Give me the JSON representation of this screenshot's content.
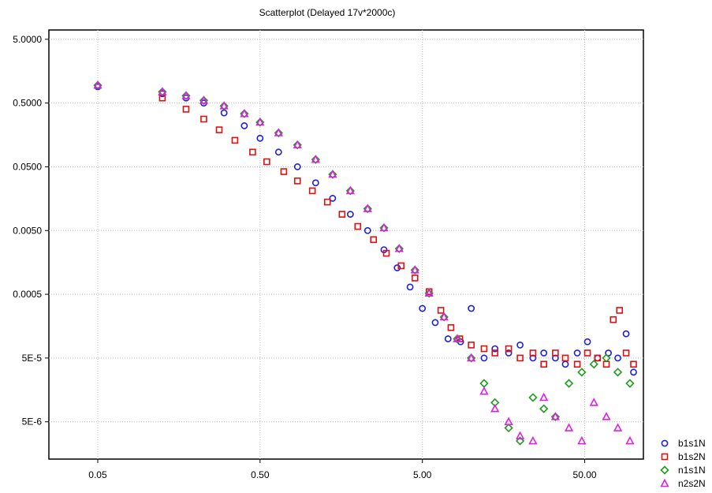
{
  "chart_data": {
    "type": "scatter",
    "title": "Scatterplot (Delayed 17v*2000c)",
    "xlabel": "",
    "ylabel": "",
    "x_scale": "log",
    "y_scale": "log",
    "xlim": [
      0.025,
      115
    ],
    "ylim": [
      1.3e-06,
      7
    ],
    "x_ticks": [
      {
        "value": 0.05,
        "label": "0.05"
      },
      {
        "value": 0.5,
        "label": "0.50"
      },
      {
        "value": 5,
        "label": "5.00"
      },
      {
        "value": 50,
        "label": "50.00"
      }
    ],
    "y_ticks": [
      {
        "value": 5,
        "label": "5.0000"
      },
      {
        "value": 0.5,
        "label": "0.5000"
      },
      {
        "value": 0.05,
        "label": "0.0500"
      },
      {
        "value": 0.005,
        "label": "0.0050"
      },
      {
        "value": 0.0005,
        "label": "0.0005"
      },
      {
        "value": 5e-05,
        "label": "5E-5"
      },
      {
        "value": 5e-06,
        "label": "5E-6"
      }
    ],
    "grid": true,
    "legend_position": "bottom-right",
    "series": [
      {
        "name": "b1s1N",
        "marker": "circle",
        "color": "#1f1fd6",
        "x": [
          0.05,
          0.125,
          0.175,
          0.225,
          0.3,
          0.4,
          0.5,
          0.65,
          0.85,
          1.1,
          1.4,
          1.8,
          2.3,
          2.9,
          3.5,
          4.2,
          5.0,
          6.0,
          7.2,
          8.6,
          10,
          12,
          14,
          17,
          20,
          24,
          28,
          33,
          38,
          45,
          52,
          60,
          70,
          80,
          90,
          100
        ],
        "y": [
          0.9,
          0.7,
          0.6,
          0.5,
          0.35,
          0.22,
          0.14,
          0.085,
          0.05,
          0.028,
          0.016,
          0.009,
          0.005,
          0.0025,
          0.0013,
          0.00065,
          0.0003,
          0.00018,
          0.0001,
          9e-05,
          0.0003,
          5e-05,
          7e-05,
          6e-05,
          8e-05,
          5e-05,
          6e-05,
          5e-05,
          4e-05,
          6e-05,
          9e-05,
          5e-05,
          6e-05,
          5e-05,
          0.00012,
          3e-05
        ]
      },
      {
        "name": "b1s2N",
        "marker": "square",
        "color": "#e01010",
        "x": [
          0.125,
          0.175,
          0.225,
          0.28,
          0.35,
          0.45,
          0.55,
          0.7,
          0.85,
          1.05,
          1.3,
          1.6,
          2.0,
          2.5,
          3.0,
          3.7,
          4.5,
          5.5,
          6.5,
          7.5,
          8.5,
          10,
          12,
          14,
          17,
          20,
          24,
          28,
          33,
          38,
          45,
          52,
          60,
          68,
          75,
          82,
          90,
          100
        ],
        "y": [
          0.6,
          0.4,
          0.28,
          0.19,
          0.13,
          0.085,
          0.06,
          0.042,
          0.03,
          0.021,
          0.014,
          0.009,
          0.0058,
          0.0036,
          0.0022,
          0.0014,
          0.0009,
          0.00055,
          0.00028,
          0.00015,
          0.0001,
          8e-05,
          7e-05,
          6e-05,
          7e-05,
          5e-05,
          6e-05,
          4e-05,
          6e-05,
          5e-05,
          4e-05,
          6e-05,
          5e-05,
          4e-05,
          0.0002,
          0.00028,
          6e-05,
          4e-05
        ]
      },
      {
        "name": "n1s1N",
        "marker": "diamond",
        "color": "#1e9a1e",
        "x": [
          0.05,
          0.125,
          0.175,
          0.225,
          0.3,
          0.4,
          0.5,
          0.65,
          0.85,
          1.1,
          1.4,
          1.8,
          2.3,
          2.9,
          3.6,
          4.5,
          5.5,
          6.8,
          8.2,
          10,
          12,
          14,
          17,
          20,
          24,
          28,
          33,
          40,
          48,
          57,
          68,
          80,
          95
        ],
        "y": [
          0.95,
          0.75,
          0.65,
          0.55,
          0.45,
          0.34,
          0.25,
          0.17,
          0.11,
          0.065,
          0.038,
          0.021,
          0.011,
          0.0055,
          0.0026,
          0.0012,
          0.00052,
          0.00022,
          0.0001,
          5e-05,
          2e-05,
          1e-05,
          4e-06,
          2.5e-06,
          1.2e-05,
          8e-06,
          6e-06,
          2e-05,
          3e-05,
          4e-05,
          5e-05,
          3e-05,
          2e-05
        ]
      },
      {
        "name": "n2s2N",
        "marker": "triangle",
        "color": "#e020e0",
        "x": [
          0.05,
          0.125,
          0.175,
          0.225,
          0.3,
          0.4,
          0.5,
          0.65,
          0.85,
          1.1,
          1.4,
          1.8,
          2.3,
          2.9,
          3.6,
          4.5,
          5.5,
          6.8,
          8.2,
          10,
          12,
          14,
          17,
          20,
          24,
          28,
          33,
          40,
          48,
          57,
          68,
          80,
          95
        ],
        "y": [
          0.95,
          0.75,
          0.65,
          0.55,
          0.45,
          0.34,
          0.25,
          0.17,
          0.11,
          0.065,
          0.038,
          0.021,
          0.011,
          0.0055,
          0.0026,
          0.0012,
          0.00052,
          0.00022,
          0.0001,
          5e-05,
          1.5e-05,
          8e-06,
          5e-06,
          3e-06,
          2.5e-06,
          1.2e-05,
          6e-06,
          4e-06,
          2.5e-06,
          1e-05,
          6e-06,
          4e-06,
          2.5e-06
        ]
      }
    ]
  }
}
